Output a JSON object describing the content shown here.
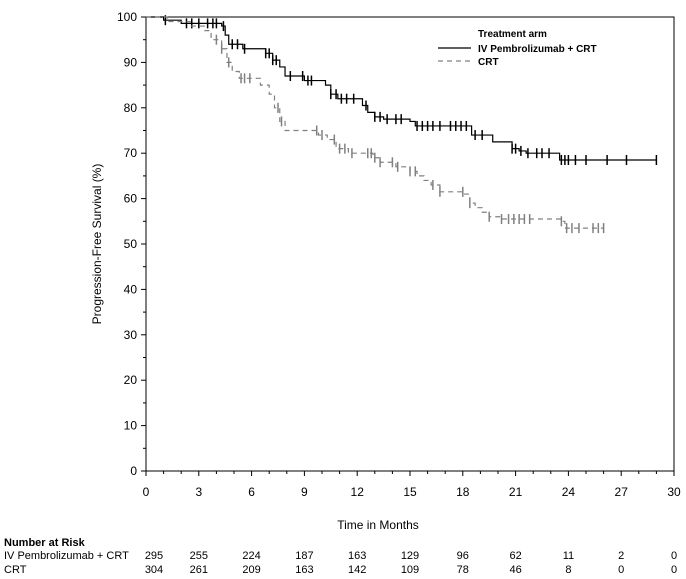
{
  "chart_data": {
    "type": "line",
    "subtype": "kaplan-meier",
    "xlabel": "Time in Months",
    "ylabel": "Progression-Free Survival (%)",
    "xlim": [
      0,
      30
    ],
    "ylim": [
      0,
      100
    ],
    "xticks": [
      0,
      3,
      6,
      9,
      12,
      15,
      18,
      21,
      24,
      27,
      30
    ],
    "yticks": [
      0,
      10,
      20,
      30,
      40,
      50,
      60,
      70,
      80,
      90,
      100
    ],
    "grid": false,
    "legend": {
      "title": "Treatment arm",
      "placement": "top-right"
    },
    "series": [
      {
        "name": "IV Pembrolizumab + CRT",
        "color": "#000000",
        "dash": "solid",
        "steps": [
          [
            0,
            100
          ],
          [
            1,
            99.3
          ],
          [
            2,
            98.6
          ],
          [
            4.3,
            98
          ],
          [
            4.5,
            96
          ],
          [
            4.7,
            94
          ],
          [
            5.5,
            93
          ],
          [
            6.8,
            92
          ],
          [
            7.2,
            90.5
          ],
          [
            7.6,
            89
          ],
          [
            7.9,
            87
          ],
          [
            9,
            86
          ],
          [
            10.2,
            85
          ],
          [
            10.5,
            83
          ],
          [
            10.9,
            82
          ],
          [
            12.3,
            80.5
          ],
          [
            12.6,
            79
          ],
          [
            13,
            78
          ],
          [
            13.5,
            77.5
          ],
          [
            15,
            77
          ],
          [
            15.3,
            76
          ],
          [
            18.5,
            74
          ],
          [
            19.7,
            72.5
          ],
          [
            20.8,
            71
          ],
          [
            21.2,
            70.5
          ],
          [
            21.6,
            70
          ],
          [
            23.5,
            68.5
          ],
          [
            29,
            68.5
          ]
        ],
        "censors": [
          1.1,
          2.3,
          2.6,
          3.0,
          3.5,
          3.8,
          4.0,
          4.4,
          4.9,
          5.2,
          5.6,
          6.8,
          7.0,
          7.2,
          7.4,
          8.2,
          8.9,
          9.2,
          9.4,
          10.5,
          10.8,
          11.1,
          11.4,
          11.8,
          12.5,
          13.0,
          13.3,
          13.7,
          14.2,
          14.5,
          15.4,
          15.7,
          16.0,
          16.3,
          16.7,
          17.3,
          17.6,
          17.9,
          18.2,
          18.7,
          19.1,
          20.8,
          21.0,
          21.3,
          21.7,
          22.2,
          22.5,
          22.9,
          23.6,
          23.8,
          24.0,
          24.4,
          25.0,
          26.2,
          27.3,
          29.0
        ]
      },
      {
        "name": "CRT",
        "color": "#808080",
        "dash": "dashed",
        "steps": [
          [
            0,
            100
          ],
          [
            1.2,
            99
          ],
          [
            2.5,
            98
          ],
          [
            3.3,
            97
          ],
          [
            3.7,
            95
          ],
          [
            4.3,
            93
          ],
          [
            4.6,
            90
          ],
          [
            4.9,
            88
          ],
          [
            5.3,
            86.5
          ],
          [
            6.5,
            85
          ],
          [
            7,
            83
          ],
          [
            7.3,
            80
          ],
          [
            7.6,
            77
          ],
          [
            7.9,
            75
          ],
          [
            9.8,
            74
          ],
          [
            10.3,
            73
          ],
          [
            10.8,
            71
          ],
          [
            11.5,
            70
          ],
          [
            12.9,
            69
          ],
          [
            13.3,
            68
          ],
          [
            14.2,
            67
          ],
          [
            15,
            66
          ],
          [
            15.4,
            65
          ],
          [
            15.8,
            64
          ],
          [
            16.2,
            63
          ],
          [
            16.7,
            61.5
          ],
          [
            18.1,
            61
          ],
          [
            18.4,
            59
          ],
          [
            18.7,
            58
          ],
          [
            19.1,
            57
          ],
          [
            19.5,
            56
          ],
          [
            20.2,
            55.5
          ],
          [
            23.6,
            55
          ],
          [
            23.8,
            53.5
          ],
          [
            26,
            53.5
          ]
        ],
        "censors": [
          4.0,
          4.3,
          4.7,
          5.4,
          5.6,
          5.9,
          7.5,
          7.7,
          9.7,
          10.0,
          10.7,
          11.0,
          11.3,
          11.7,
          12.6,
          12.8,
          13.0,
          13.3,
          14.0,
          14.3,
          15.0,
          15.3,
          16.3,
          16.7,
          18.0,
          18.4,
          19.5,
          20.2,
          20.6,
          20.9,
          21.2,
          21.5,
          21.8,
          23.6,
          23.9,
          24.2,
          24.6,
          25.4,
          25.7,
          26.0
        ]
      }
    ],
    "risk_table": {
      "title": "Number at Risk",
      "times": [
        0,
        3,
        6,
        9,
        12,
        15,
        18,
        21,
        24,
        27,
        30
      ],
      "rows": [
        {
          "label": "IV Pembrolizumab + CRT",
          "values": [
            295,
            255,
            224,
            187,
            163,
            129,
            96,
            62,
            11,
            2,
            0
          ]
        },
        {
          "label": "CRT",
          "values": [
            304,
            261,
            209,
            163,
            142,
            109,
            78,
            46,
            8,
            0,
            0
          ]
        }
      ]
    }
  }
}
